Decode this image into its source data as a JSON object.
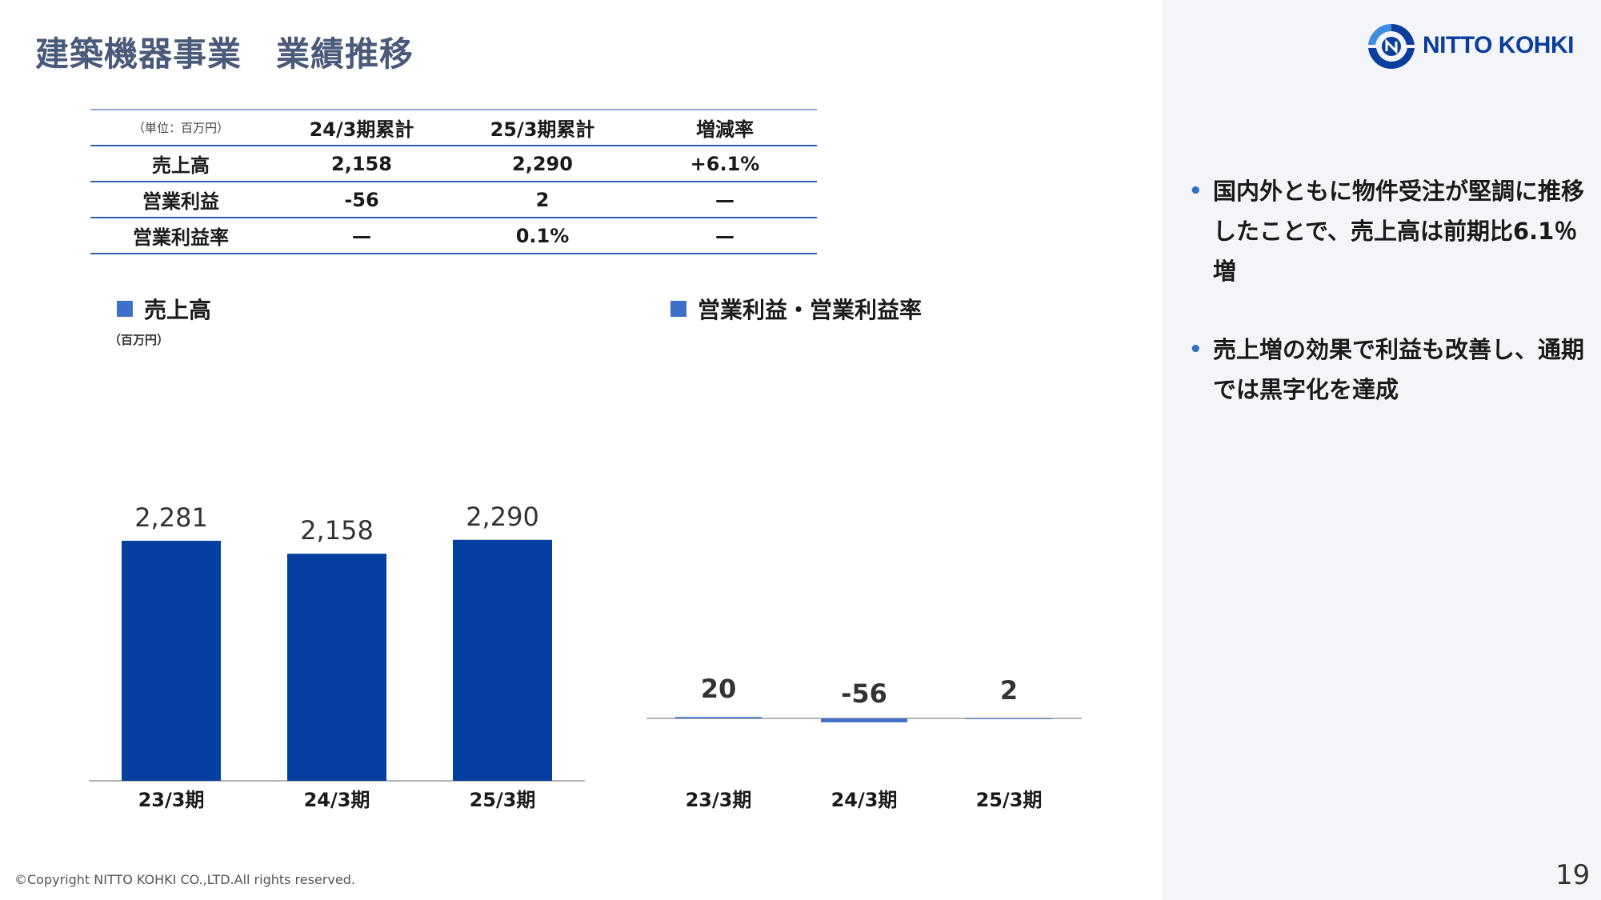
{
  "slide": {
    "title": "建築機器事業　業績推移",
    "page_number": "19",
    "copyright": "©Copyright NITTO KOHKI CO.,LTD.All rights reserved."
  },
  "logo": {
    "text": "NITTO KOHKI",
    "colors": {
      "primary": "#0b3e9b",
      "accent": "#3e8ee0"
    }
  },
  "table": {
    "unit": "（単位：百万円）",
    "headers": [
      "24/3期累計",
      "25/3期累計",
      "増減率"
    ],
    "rows": [
      {
        "label": "売上高",
        "values": [
          "2,158",
          "2,290",
          "+6.1%"
        ]
      },
      {
        "label": "営業利益",
        "values": [
          "-56",
          "2",
          "—"
        ]
      },
      {
        "label": "営業利益率",
        "values": [
          "—",
          "0.1%",
          "—"
        ]
      }
    ]
  },
  "legends": {
    "sales": "売上高",
    "sales_unit": "（百万円）",
    "profit": "営業利益・営業利益率"
  },
  "bullets": [
    "国内外ともに物件受注が堅調に推移したことで、売上高は前期比6.1％増",
    "売上増の効果で利益も改善し、通期では黒字化を達成"
  ],
  "colors": {
    "bar": "#0540a0",
    "bar_light": "#4472c4",
    "side_panel": "#f3f5f9",
    "bullet_dot": "#2f6fc9"
  },
  "chart_data": [
    {
      "type": "bar",
      "title": "売上高",
      "ylabel": "（百万円）",
      "categories": [
        "23/3期",
        "24/3期",
        "25/3期"
      ],
      "values": [
        2281,
        2158,
        2290
      ],
      "value_labels": [
        "2,281",
        "2,158",
        "2,290"
      ],
      "ylim": [
        0,
        2600
      ],
      "grid": false
    },
    {
      "type": "bar",
      "title": "営業利益・営業利益率",
      "categories": [
        "23/3期",
        "24/3期",
        "25/3期"
      ],
      "values": [
        20,
        -56,
        2
      ],
      "value_labels": [
        "20",
        "-56",
        "2"
      ],
      "ylim": [
        -1200,
        3000
      ],
      "grid": false
    }
  ]
}
